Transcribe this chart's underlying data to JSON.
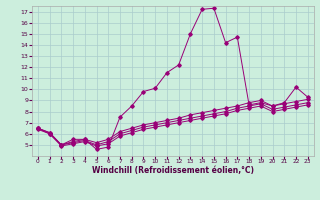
{
  "xlabel": "Windchill (Refroidissement éolien,°C)",
  "ylabel": "",
  "background_color": "#cceedd",
  "line_color": "#990077",
  "grid_color": "#aacccc",
  "xlim": [
    -0.5,
    23.5
  ],
  "ylim": [
    4,
    17.5
  ],
  "xticks": [
    0,
    1,
    2,
    3,
    4,
    5,
    6,
    7,
    8,
    9,
    10,
    11,
    12,
    13,
    14,
    15,
    16,
    17,
    18,
    19,
    20,
    21,
    22,
    23
  ],
  "yticks": [
    5,
    6,
    7,
    8,
    9,
    10,
    11,
    12,
    13,
    14,
    15,
    16,
    17
  ],
  "line1_x": [
    0,
    1,
    2,
    3,
    4,
    5,
    6,
    7,
    8,
    9,
    10,
    11,
    12,
    13,
    14,
    15,
    16,
    17,
    18,
    19,
    20,
    21,
    22,
    23
  ],
  "line1_y": [
    6.5,
    6.1,
    5.0,
    5.5,
    5.5,
    4.6,
    4.8,
    7.5,
    8.5,
    9.8,
    10.1,
    11.5,
    12.2,
    15.0,
    17.2,
    17.3,
    14.2,
    14.7,
    8.6,
    8.8,
    8.5,
    8.8,
    10.2,
    9.3
  ],
  "line2_x": [
    0,
    1,
    2,
    3,
    4,
    5,
    6,
    7,
    8,
    9,
    10,
    11,
    12,
    13,
    14,
    15,
    16,
    17,
    18,
    19,
    20,
    21,
    22,
    23
  ],
  "line2_y": [
    6.5,
    6.1,
    5.0,
    5.3,
    5.5,
    5.2,
    5.5,
    6.2,
    6.5,
    6.8,
    7.0,
    7.2,
    7.4,
    7.7,
    7.9,
    8.1,
    8.3,
    8.5,
    8.8,
    9.0,
    8.5,
    8.7,
    8.9,
    9.1
  ],
  "line3_x": [
    0,
    1,
    2,
    3,
    4,
    5,
    6,
    7,
    8,
    9,
    10,
    11,
    12,
    13,
    14,
    15,
    16,
    17,
    18,
    19,
    20,
    21,
    22,
    23
  ],
  "line3_y": [
    6.5,
    6.0,
    5.0,
    5.2,
    5.4,
    5.0,
    5.3,
    6.0,
    6.3,
    6.6,
    6.8,
    7.0,
    7.2,
    7.4,
    7.6,
    7.8,
    8.0,
    8.3,
    8.5,
    8.7,
    8.2,
    8.4,
    8.6,
    8.8
  ],
  "line4_x": [
    0,
    1,
    2,
    3,
    4,
    5,
    6,
    7,
    8,
    9,
    10,
    11,
    12,
    13,
    14,
    15,
    16,
    17,
    18,
    19,
    20,
    21,
    22,
    23
  ],
  "line4_y": [
    6.4,
    6.0,
    4.9,
    5.1,
    5.3,
    4.9,
    5.1,
    5.8,
    6.1,
    6.4,
    6.6,
    6.8,
    7.0,
    7.2,
    7.4,
    7.6,
    7.8,
    8.1,
    8.3,
    8.5,
    8.0,
    8.2,
    8.4,
    8.6
  ]
}
